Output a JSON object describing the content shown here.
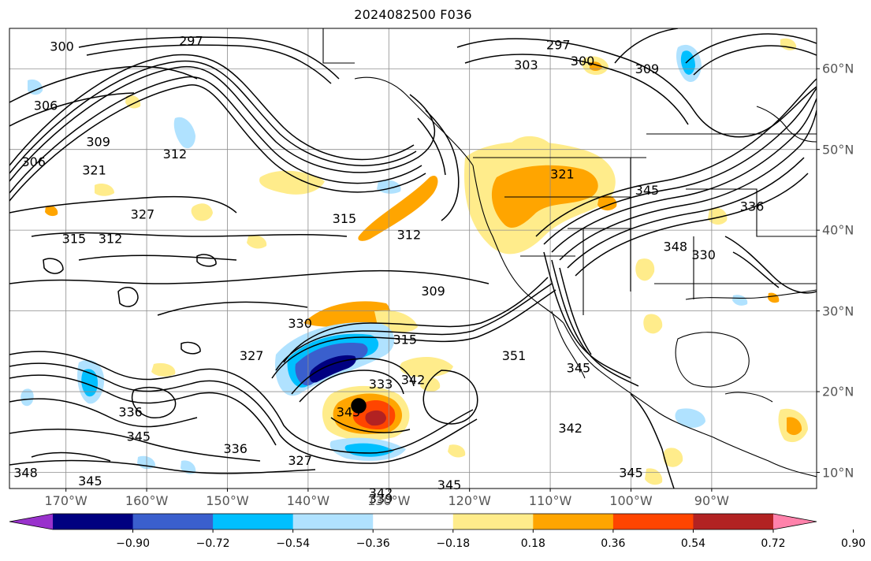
{
  "title": "2024082500 F036",
  "map": {
    "projection": "PlateCarree",
    "lon_range_deg": [
      -177,
      -77
    ],
    "lat_range_deg": [
      8,
      65
    ],
    "grid": true,
    "coastlines": true,
    "state_borders": true
  },
  "lon_ticks": [
    {
      "lon": -170,
      "label": "170°W"
    },
    {
      "lon": -160,
      "label": "160°W"
    },
    {
      "lon": -150,
      "label": "150°W"
    },
    {
      "lon": -140,
      "label": "140°W"
    },
    {
      "lon": -130,
      "label": "130°W"
    },
    {
      "lon": -120,
      "label": "120°W"
    },
    {
      "lon": -110,
      "label": "110°W"
    },
    {
      "lon": -100,
      "label": "100°W"
    },
    {
      "lon": -90,
      "label": "90°W"
    }
  ],
  "lat_ticks": [
    {
      "lat": 60,
      "label": "60°N"
    },
    {
      "lat": 50,
      "label": "50°N"
    },
    {
      "lat": 40,
      "label": "40°N"
    },
    {
      "lat": 30,
      "label": "30°N"
    },
    {
      "lat": 20,
      "label": "20°N"
    },
    {
      "lat": 10,
      "label": "10°N"
    }
  ],
  "contour_labels": [
    {
      "text": "300",
      "lon": -170.5,
      "lat": 62.8
    },
    {
      "text": "297",
      "lon": -154.5,
      "lat": 63.5
    },
    {
      "text": "306",
      "lon": -172.5,
      "lat": 55.5
    },
    {
      "text": "309",
      "lon": -166,
      "lat": 51.0
    },
    {
      "text": "306",
      "lon": -174,
      "lat": 48.5
    },
    {
      "text": "321",
      "lon": -166.5,
      "lat": 47.5
    },
    {
      "text": "312",
      "lon": -156.5,
      "lat": 49.5
    },
    {
      "text": "327",
      "lon": -160.5,
      "lat": 42.0
    },
    {
      "text": "315",
      "lon": -169,
      "lat": 39.0
    },
    {
      "text": "312",
      "lon": -164.5,
      "lat": 39.0
    },
    {
      "text": "315",
      "lon": -135.5,
      "lat": 41.5
    },
    {
      "text": "312",
      "lon": -127.5,
      "lat": 39.5
    },
    {
      "text": "309",
      "lon": -124.5,
      "lat": 32.5
    },
    {
      "text": "330",
      "lon": -141,
      "lat": 28.5
    },
    {
      "text": "315",
      "lon": -128,
      "lat": 26.5
    },
    {
      "text": "327",
      "lon": -147,
      "lat": 24.5
    },
    {
      "text": "333",
      "lon": -131,
      "lat": 21.0
    },
    {
      "text": "342",
      "lon": -127,
      "lat": 21.5
    },
    {
      "text": "345",
      "lon": -135,
      "lat": 17.5
    },
    {
      "text": "345",
      "lon": -161,
      "lat": 14.5
    },
    {
      "text": "336",
      "lon": -162,
      "lat": 17.5
    },
    {
      "text": "336",
      "lon": -149,
      "lat": 13.0
    },
    {
      "text": "327",
      "lon": -141,
      "lat": 11.5
    },
    {
      "text": "345",
      "lon": -167,
      "lat": 9.0
    },
    {
      "text": "348",
      "lon": -175,
      "lat": 10.0
    },
    {
      "text": "342",
      "lon": -131,
      "lat": 7.5
    },
    {
      "text": "339",
      "lon": -131,
      "lat": 6.8
    },
    {
      "text": "345",
      "lon": -122.5,
      "lat": 8.5
    },
    {
      "text": "297",
      "lon": -109,
      "lat": 63.0
    },
    {
      "text": "300",
      "lon": -106,
      "lat": 61.0
    },
    {
      "text": "303",
      "lon": -113,
      "lat": 60.5
    },
    {
      "text": "309",
      "lon": -98,
      "lat": 60.0
    },
    {
      "text": "321",
      "lon": -108.5,
      "lat": 47.0
    },
    {
      "text": "345",
      "lon": -98,
      "lat": 45.0
    },
    {
      "text": "336",
      "lon": -85,
      "lat": 43.0
    },
    {
      "text": "348",
      "lon": -94.5,
      "lat": 38.0
    },
    {
      "text": "330",
      "lon": -91,
      "lat": 37.0
    },
    {
      "text": "351",
      "lon": -114.5,
      "lat": 24.5
    },
    {
      "text": "345",
      "lon": -106.5,
      "lat": 23.0
    },
    {
      "text": "342",
      "lon": -107.5,
      "lat": 15.5
    },
    {
      "text": "345",
      "lon": -100,
      "lat": 10.0
    }
  ],
  "colorbar": {
    "colors": [
      "#9932cc",
      "#000080",
      "#3a5fcd",
      "#00bfff",
      "#b0e2ff",
      "#ffffff",
      "#ffec8b",
      "#ffa500",
      "#ff4500",
      "#b22222",
      "#ff82ab"
    ],
    "tick_values": [
      -0.9,
      -0.72,
      -0.54,
      -0.36,
      -0.18,
      0.18,
      0.36,
      0.54,
      0.72,
      0.9
    ],
    "tick_labels": [
      "−0.90",
      "−0.72",
      "−0.54",
      "−0.36",
      "−0.18",
      "0.18",
      "0.36",
      "0.54",
      "0.72",
      "0.90"
    ],
    "extend": "both"
  }
}
